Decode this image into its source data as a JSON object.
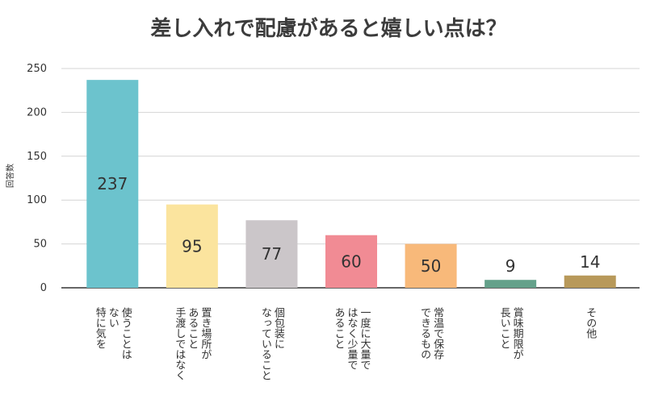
{
  "chart_data": {
    "type": "bar",
    "title": "差し入れで配慮があると嬉しい点は？",
    "ylabel": "回答数",
    "xlabel": "",
    "ylim": [
      0,
      250
    ],
    "yticks": [
      0,
      50,
      100,
      150,
      200,
      250
    ],
    "grid": true,
    "categories": [
      [
        "使うことは",
        "ない",
        "特に気を"
      ],
      [
        "置き場所が",
        "あること",
        "手渡しではなく"
      ],
      [
        "個包装に",
        "なっていること"
      ],
      [
        "一度に大量で",
        "はなく少量で",
        "あること"
      ],
      [
        "常温で保存",
        "できるもの"
      ],
      [
        "賞味期限が",
        "長いこと"
      ],
      [
        "その他"
      ]
    ],
    "values": [
      237,
      95,
      77,
      60,
      50,
      9,
      14
    ],
    "colors": [
      "#6cc3cd",
      "#fbe49e",
      "#cbc6c9",
      "#f18b94",
      "#f8b97a",
      "#64a18a",
      "#b8995a"
    ]
  }
}
